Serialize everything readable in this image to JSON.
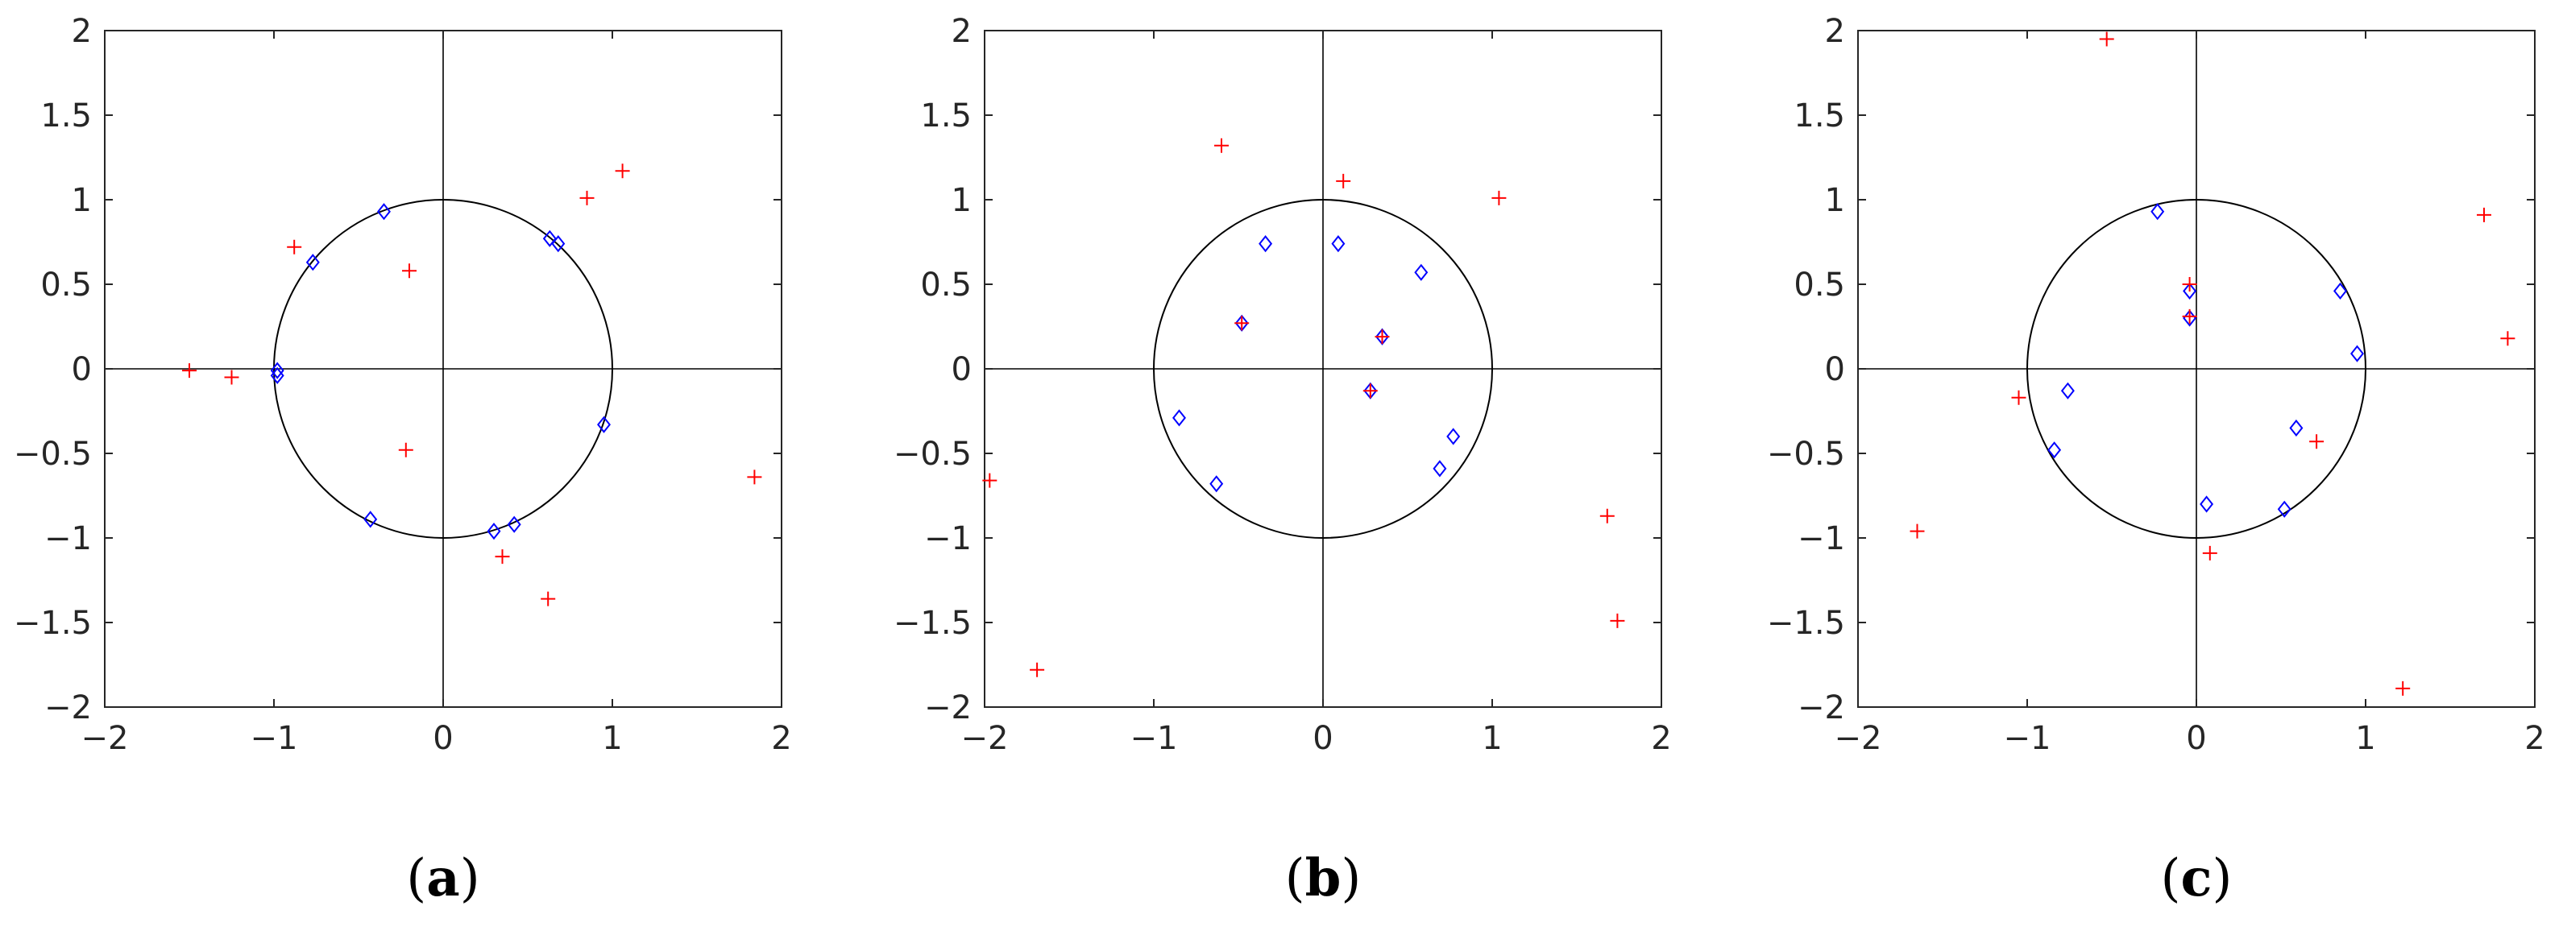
{
  "chart_data": [
    {
      "type": "scatter",
      "panel_label": "a",
      "xlim": [
        -2,
        2
      ],
      "ylim": [
        -2,
        2
      ],
      "xticks": [
        "−2",
        "−1",
        "0",
        "1",
        "2"
      ],
      "yticks": [
        "2",
        "1.5",
        "1",
        "0.5",
        "0",
        "−0.5",
        "−1",
        "−1.5",
        "−2"
      ],
      "grid": false,
      "unit_circle": true,
      "marker_colors": {
        "plus": "#ff0000",
        "diamond": "#0000ff"
      },
      "plus_points": [
        [
          -1.5,
          -0.01
        ],
        [
          -1.25,
          -0.05
        ],
        [
          -0.88,
          0.72
        ],
        [
          -0.2,
          0.58
        ],
        [
          -0.22,
          -0.48
        ],
        [
          0.35,
          -1.11
        ],
        [
          0.62,
          -1.36
        ],
        [
          0.85,
          1.01
        ],
        [
          1.06,
          1.17
        ],
        [
          1.84,
          -0.64
        ]
      ],
      "diamond_points": [
        [
          -0.98,
          -0.01
        ],
        [
          -0.98,
          -0.04
        ],
        [
          -0.77,
          0.63
        ],
        [
          -0.35,
          0.93
        ],
        [
          -0.43,
          -0.89
        ],
        [
          0.3,
          -0.96
        ],
        [
          0.42,
          -0.92
        ],
        [
          0.63,
          0.77
        ],
        [
          0.68,
          0.74
        ],
        [
          0.95,
          -0.33
        ]
      ]
    },
    {
      "type": "scatter",
      "panel_label": "b",
      "xlim": [
        -2,
        2
      ],
      "ylim": [
        -2,
        2
      ],
      "xticks": [
        "−2",
        "−1",
        "0",
        "1",
        "2"
      ],
      "yticks": [
        "2",
        "1.5",
        "1",
        "0.5",
        "0",
        "−0.5",
        "−1",
        "−1.5",
        "−2"
      ],
      "grid": false,
      "unit_circle": true,
      "marker_colors": {
        "plus": "#ff0000",
        "diamond": "#0000ff"
      },
      "plus_points": [
        [
          -1.97,
          -0.66
        ],
        [
          -1.69,
          -1.78
        ],
        [
          -0.6,
          1.32
        ],
        [
          -0.48,
          0.27
        ],
        [
          0.12,
          1.11
        ],
        [
          0.28,
          -0.13
        ],
        [
          0.35,
          0.19
        ],
        [
          1.04,
          1.01
        ],
        [
          1.68,
          -0.87
        ],
        [
          1.74,
          -1.49
        ]
      ],
      "diamond_points": [
        [
          -0.85,
          -0.29
        ],
        [
          -0.63,
          -0.68
        ],
        [
          -0.48,
          0.27
        ],
        [
          -0.34,
          0.74
        ],
        [
          0.09,
          0.74
        ],
        [
          0.28,
          -0.13
        ],
        [
          0.35,
          0.19
        ],
        [
          0.58,
          0.57
        ],
        [
          0.69,
          -0.59
        ],
        [
          0.77,
          -0.4
        ]
      ]
    },
    {
      "type": "scatter",
      "panel_label": "c",
      "xlim": [
        -2,
        2
      ],
      "ylim": [
        -2,
        2
      ],
      "xticks": [
        "−2",
        "−1",
        "0",
        "1",
        "2"
      ],
      "yticks": [
        "2",
        "1.5",
        "1",
        "0.5",
        "0",
        "−0.5",
        "−1",
        "−1.5",
        "−2"
      ],
      "grid": false,
      "unit_circle": true,
      "marker_colors": {
        "plus": "#ff0000",
        "diamond": "#0000ff"
      },
      "plus_points": [
        [
          -1.65,
          -0.96
        ],
        [
          -1.05,
          -0.17
        ],
        [
          -0.53,
          1.95
        ],
        [
          -0.04,
          0.5
        ],
        [
          -0.04,
          0.31
        ],
        [
          0.08,
          -1.09
        ],
        [
          0.71,
          -0.43
        ],
        [
          1.22,
          -1.89
        ],
        [
          1.7,
          0.91
        ],
        [
          1.84,
          0.18
        ]
      ],
      "diamond_points": [
        [
          -0.23,
          0.93
        ],
        [
          -0.04,
          0.46
        ],
        [
          -0.04,
          0.3
        ],
        [
          -0.76,
          -0.13
        ],
        [
          -0.84,
          -0.48
        ],
        [
          0.06,
          -0.8
        ],
        [
          0.52,
          -0.83
        ],
        [
          0.59,
          -0.35
        ],
        [
          0.85,
          0.46
        ],
        [
          0.95,
          0.09
        ]
      ]
    }
  ]
}
